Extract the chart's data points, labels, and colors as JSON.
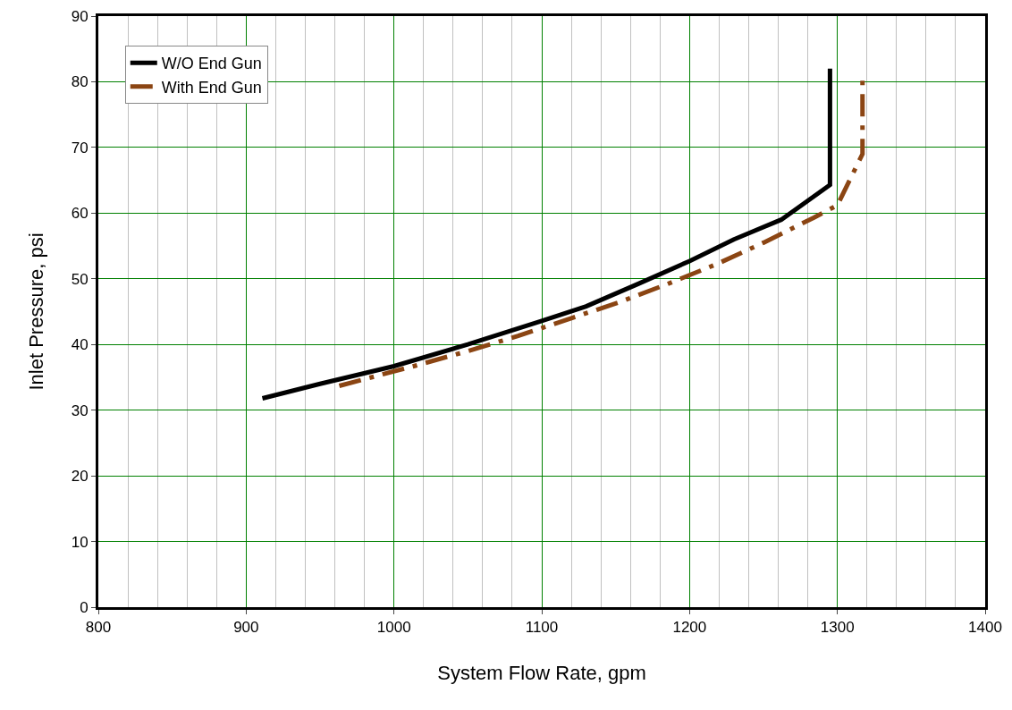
{
  "chart_data": {
    "type": "line",
    "xlabel": "System Flow Rate, gpm",
    "ylabel": "Inlet Pressure, psi",
    "xlim": [
      800,
      1400
    ],
    "xticks": [
      800,
      900,
      1000,
      1100,
      1200,
      1300,
      1400
    ],
    "ylim": [
      0,
      90
    ],
    "yticks": [
      0,
      10,
      20,
      30,
      40,
      50,
      60,
      70,
      80,
      90
    ],
    "grid": true,
    "legend": "top left",
    "marker": "none",
    "series": [
      {
        "name": "W/O End Gun",
        "color": "#000000",
        "line_style": "solid",
        "x": [
          911,
          950,
          1000,
          1050,
          1100,
          1130,
          1165,
          1200,
          1230,
          1262,
          1295,
          1295
        ],
        "values": [
          31.8,
          34,
          36.7,
          40,
          43.6,
          45.8,
          49.2,
          52.7,
          56,
          59,
          64.3,
          82
        ]
      },
      {
        "name": "With End Gun",
        "color": "#8b4513",
        "line_style": "dashdot",
        "x": [
          963,
          1015,
          1050,
          1084,
          1120,
          1152,
          1185,
          1219,
          1250,
          1284,
          1300,
          1317,
          1317
        ],
        "values": [
          33.7,
          36.8,
          39,
          41.3,
          44,
          46.4,
          49.2,
          52.3,
          55.5,
          59.3,
          61.2,
          69,
          80.5
        ]
      }
    ]
  }
}
